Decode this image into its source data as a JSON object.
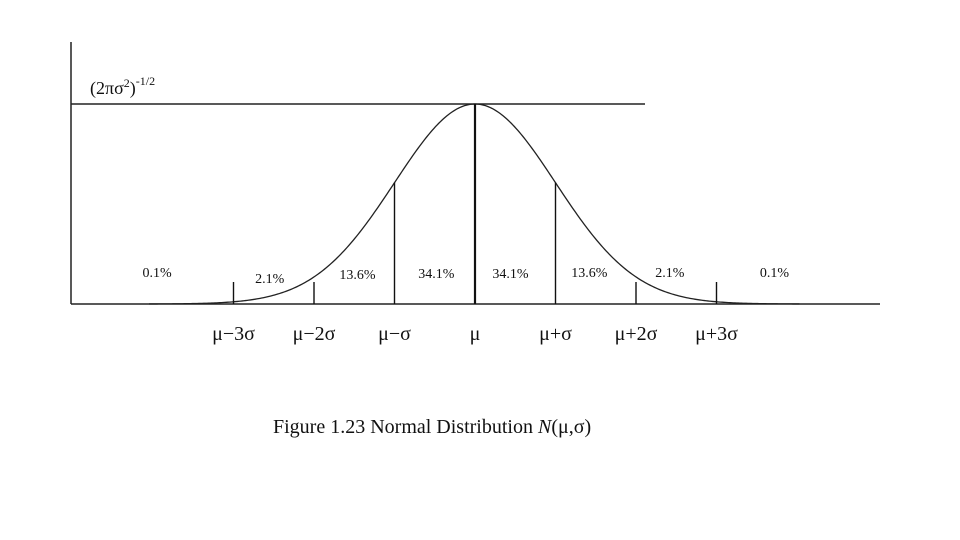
{
  "figure": {
    "caption_prefix": "Figure 1.23 Normal Distribution ",
    "caption_symbol": "N",
    "caption_args": "(μ,σ)"
  },
  "chart_data": {
    "type": "area",
    "curve": "normal",
    "mean_label": "μ",
    "sigma_label": "σ",
    "y_label_base": "(2πσ",
    "y_label_sup1": "2",
    "y_label_mid": ")",
    "y_label_sup2": "-1/2",
    "x_ticks": [
      {
        "label": "μ−3σ",
        "x": -3
      },
      {
        "label": "μ−2σ",
        "x": -2
      },
      {
        "label": "μ−σ",
        "x": -1
      },
      {
        "label": "μ",
        "x": 0
      },
      {
        "label": "μ+σ",
        "x": 1
      },
      {
        "label": "μ+2σ",
        "x": 2
      },
      {
        "label": "μ+3σ",
        "x": 3
      }
    ],
    "regions": [
      {
        "from": -4,
        "to": -3,
        "percent": "0.1%"
      },
      {
        "from": -3,
        "to": -2,
        "percent": "2.1%"
      },
      {
        "from": -2,
        "to": -1,
        "percent": "13.6%"
      },
      {
        "from": -1,
        "to": 0,
        "percent": "34.1%"
      },
      {
        "from": 0,
        "to": 1,
        "percent": "34.1%"
      },
      {
        "from": 1,
        "to": 2,
        "percent": "13.6%"
      },
      {
        "from": 2,
        "to": 3,
        "percent": "2.1%"
      },
      {
        "from": 3,
        "to": 4,
        "percent": "0.1%"
      }
    ],
    "xlim": [
      -4,
      5
    ],
    "ylim": [
      0,
      1
    ]
  }
}
